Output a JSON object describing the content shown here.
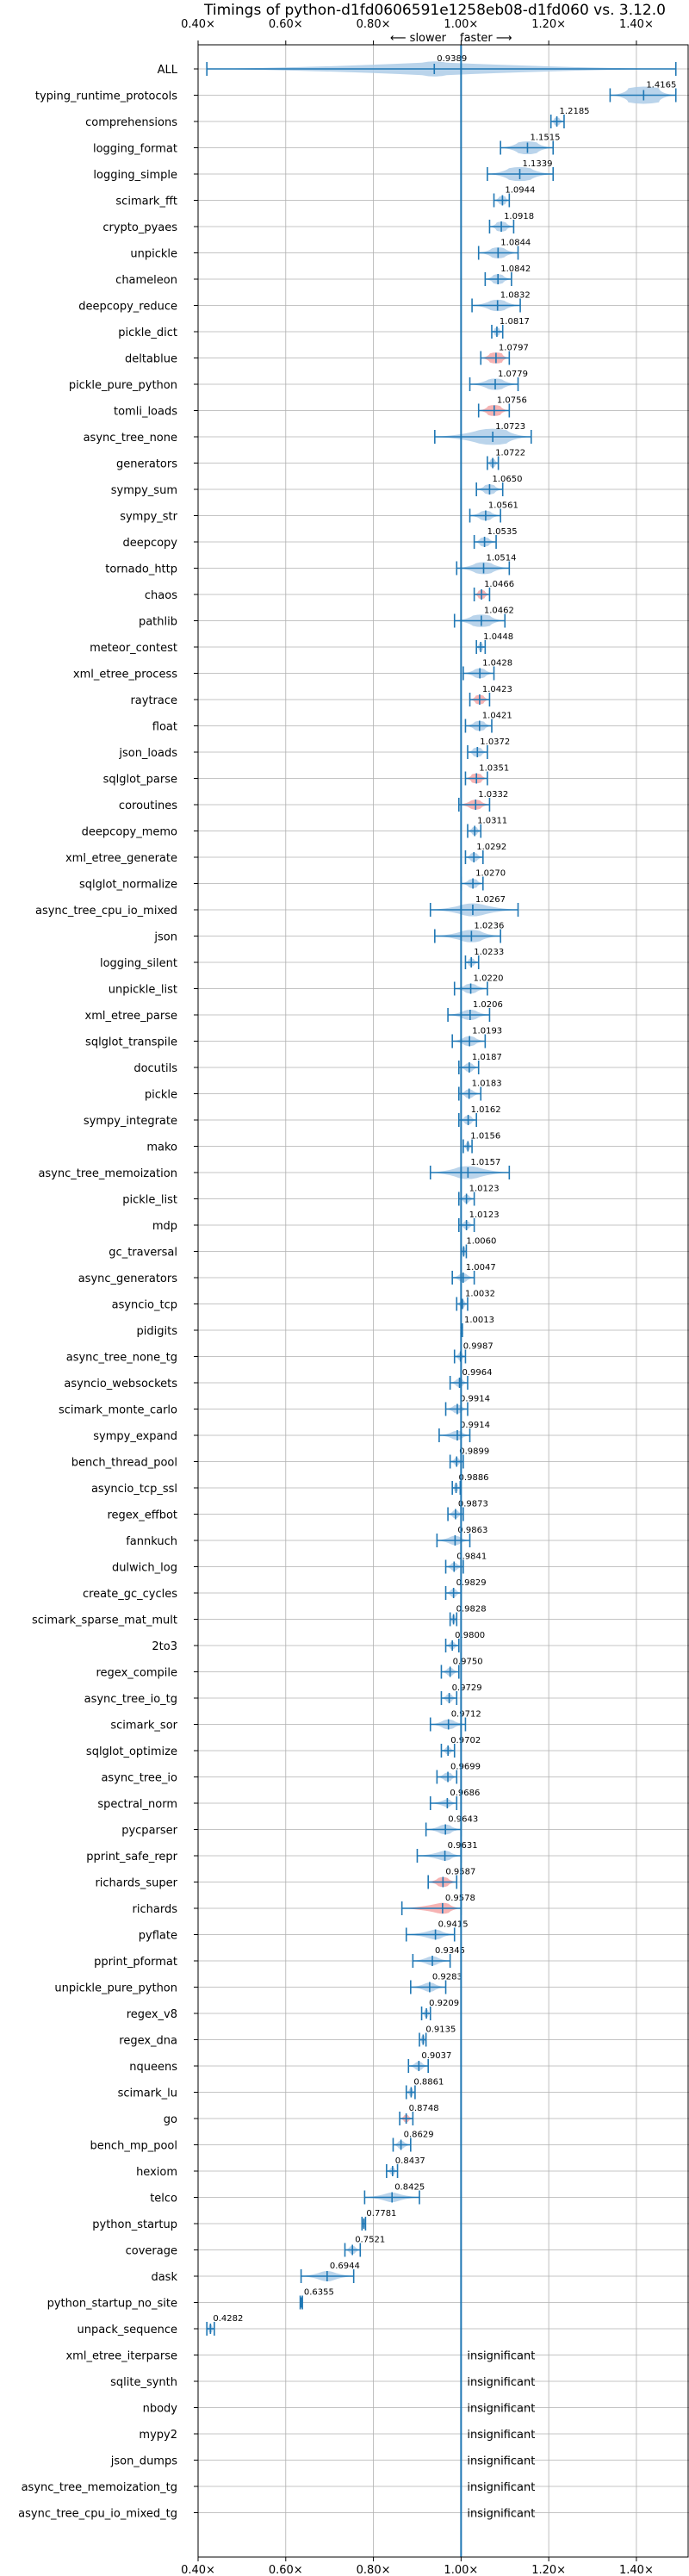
{
  "chart_data": {
    "type": "violin",
    "title": "Timings of python-d1fd0606591e1258eb08-d1fd060 vs. 3.12.0",
    "slower_label": "⟵ slower",
    "faster_label": "faster ⟶",
    "xlim": [
      0.4,
      1.52
    ],
    "xticks": [
      0.4,
      0.6,
      0.8,
      1.0,
      1.2,
      1.4
    ],
    "xtick_labels": [
      "0.40×",
      "0.60×",
      "0.80×",
      "1.00×",
      "1.20×",
      "1.40×"
    ],
    "reference_line": 1.0,
    "grid": true,
    "colors": {
      "violin": "#aecde8",
      "violin_slow": "#f4a6a6",
      "stroke": "#1f77b4",
      "grid": "#b0b0b0",
      "reference": "#1f77b4"
    },
    "insignificant_text": "insignificant",
    "benchmarks": [
      {
        "name": "ALL",
        "mean": 0.9389,
        "lo": 0.42,
        "hi": 1.49,
        "width": 0.08,
        "label": "0.9389"
      },
      {
        "name": "typing_runtime_protocols",
        "mean": 1.4165,
        "lo": 1.34,
        "hi": 1.49,
        "width": 0.1,
        "label": "1.4165"
      },
      {
        "name": "comprehensions",
        "mean": 1.2185,
        "lo": 1.205,
        "hi": 1.235,
        "width": 0.015,
        "label": "1.2185"
      },
      {
        "name": "logging_format",
        "mean": 1.1515,
        "lo": 1.09,
        "hi": 1.21,
        "width": 0.06,
        "label": "1.1515"
      },
      {
        "name": "logging_simple",
        "mean": 1.1339,
        "lo": 1.06,
        "hi": 1.21,
        "width": 0.07,
        "label": "1.1339"
      },
      {
        "name": "scimark_fft",
        "mean": 1.0944,
        "lo": 1.075,
        "hi": 1.11,
        "width": 0.02,
        "label": "1.0944"
      },
      {
        "name": "crypto_pyaes",
        "mean": 1.0918,
        "lo": 1.065,
        "hi": 1.12,
        "width": 0.03,
        "label": "1.0918"
      },
      {
        "name": "unpickle",
        "mean": 1.0844,
        "lo": 1.04,
        "hi": 1.13,
        "width": 0.04,
        "label": "1.0844"
      },
      {
        "name": "chameleon",
        "mean": 1.0842,
        "lo": 1.055,
        "hi": 1.115,
        "width": 0.03,
        "label": "1.0842"
      },
      {
        "name": "deepcopy_reduce",
        "mean": 1.0832,
        "lo": 1.025,
        "hi": 1.135,
        "width": 0.045,
        "label": "1.0832"
      },
      {
        "name": "pickle_dict",
        "mean": 1.0817,
        "lo": 1.07,
        "hi": 1.095,
        "width": 0.015,
        "label": "1.0817"
      },
      {
        "name": "deltablue",
        "mean": 1.0797,
        "lo": 1.045,
        "hi": 1.11,
        "width": 0.04,
        "label": "1.0797",
        "slow": true
      },
      {
        "name": "pickle_pure_python",
        "mean": 1.0779,
        "lo": 1.02,
        "hi": 1.13,
        "width": 0.045,
        "label": "1.0779"
      },
      {
        "name": "tomli_loads",
        "mean": 1.0756,
        "lo": 1.04,
        "hi": 1.11,
        "width": 0.04,
        "label": "1.0756",
        "slow": true
      },
      {
        "name": "async_tree_none",
        "mean": 1.0723,
        "lo": 0.94,
        "hi": 1.16,
        "width": 0.09,
        "label": "1.0723"
      },
      {
        "name": "generators",
        "mean": 1.0722,
        "lo": 1.06,
        "hi": 1.085,
        "width": 0.015,
        "label": "1.0722"
      },
      {
        "name": "sympy_sum",
        "mean": 1.065,
        "lo": 1.035,
        "hi": 1.095,
        "width": 0.03,
        "label": "1.0650"
      },
      {
        "name": "sympy_str",
        "mean": 1.0561,
        "lo": 1.02,
        "hi": 1.09,
        "width": 0.03,
        "label": "1.0561"
      },
      {
        "name": "deepcopy",
        "mean": 1.0535,
        "lo": 1.03,
        "hi": 1.08,
        "width": 0.025,
        "label": "1.0535"
      },
      {
        "name": "tornado_http",
        "mean": 1.0514,
        "lo": 0.99,
        "hi": 1.11,
        "width": 0.05,
        "label": "1.0514"
      },
      {
        "name": "chaos",
        "mean": 1.0466,
        "lo": 1.03,
        "hi": 1.065,
        "width": 0.02,
        "label": "1.0466",
        "slow": true
      },
      {
        "name": "pathlib",
        "mean": 1.0462,
        "lo": 0.985,
        "hi": 1.1,
        "width": 0.055,
        "label": "1.0462"
      },
      {
        "name": "meteor_contest",
        "mean": 1.0448,
        "lo": 1.035,
        "hi": 1.055,
        "width": 0.012,
        "label": "1.0448"
      },
      {
        "name": "xml_etree_process",
        "mean": 1.0428,
        "lo": 1.005,
        "hi": 1.075,
        "width": 0.03,
        "label": "1.0428"
      },
      {
        "name": "raytrace",
        "mean": 1.0423,
        "lo": 1.02,
        "hi": 1.065,
        "width": 0.025,
        "label": "1.0423",
        "slow": true
      },
      {
        "name": "float",
        "mean": 1.0421,
        "lo": 1.01,
        "hi": 1.07,
        "width": 0.03,
        "label": "1.0421"
      },
      {
        "name": "json_loads",
        "mean": 1.0372,
        "lo": 1.015,
        "hi": 1.06,
        "width": 0.025,
        "label": "1.0372"
      },
      {
        "name": "sqlglot_parse",
        "mean": 1.0351,
        "lo": 1.01,
        "hi": 1.06,
        "width": 0.03,
        "label": "1.0351",
        "slow": true
      },
      {
        "name": "coroutines",
        "mean": 1.0332,
        "lo": 0.995,
        "hi": 1.065,
        "width": 0.03,
        "label": "1.0332",
        "slow": true
      },
      {
        "name": "deepcopy_memo",
        "mean": 1.0311,
        "lo": 1.015,
        "hi": 1.045,
        "width": 0.015,
        "label": "1.0311"
      },
      {
        "name": "xml_etree_generate",
        "mean": 1.0292,
        "lo": 1.01,
        "hi": 1.05,
        "width": 0.02,
        "label": "1.0292"
      },
      {
        "name": "sqlglot_normalize",
        "mean": 1.027,
        "lo": 1.0,
        "hi": 1.05,
        "width": 0.025,
        "label": "1.0270"
      },
      {
        "name": "async_tree_cpu_io_mixed",
        "mean": 1.0267,
        "lo": 0.93,
        "hi": 1.13,
        "width": 0.06,
        "label": "1.0267"
      },
      {
        "name": "json",
        "mean": 1.0236,
        "lo": 0.94,
        "hi": 1.09,
        "width": 0.055,
        "label": "1.0236"
      },
      {
        "name": "logging_silent",
        "mean": 1.0233,
        "lo": 1.01,
        "hi": 1.04,
        "width": 0.015,
        "label": "1.0233"
      },
      {
        "name": "unpickle_list",
        "mean": 1.022,
        "lo": 0.985,
        "hi": 1.06,
        "width": 0.03,
        "label": "1.0220"
      },
      {
        "name": "xml_etree_parse",
        "mean": 1.0206,
        "lo": 0.97,
        "hi": 1.065,
        "width": 0.035,
        "label": "1.0206"
      },
      {
        "name": "sqlglot_transpile",
        "mean": 1.0193,
        "lo": 0.98,
        "hi": 1.055,
        "width": 0.03,
        "label": "1.0193"
      },
      {
        "name": "docutils",
        "mean": 1.0187,
        "lo": 0.995,
        "hi": 1.04,
        "width": 0.02,
        "label": "1.0187"
      },
      {
        "name": "pickle",
        "mean": 1.0183,
        "lo": 0.995,
        "hi": 1.045,
        "width": 0.02,
        "label": "1.0183"
      },
      {
        "name": "sympy_integrate",
        "mean": 1.0162,
        "lo": 0.995,
        "hi": 1.035,
        "width": 0.02,
        "label": "1.0162"
      },
      {
        "name": "mako",
        "mean": 1.0156,
        "lo": 1.005,
        "hi": 1.025,
        "width": 0.01,
        "label": "1.0156"
      },
      {
        "name": "async_tree_memoization",
        "mean": 1.0157,
        "lo": 0.93,
        "hi": 1.11,
        "width": 0.06,
        "label": "1.0157"
      },
      {
        "name": "pickle_list",
        "mean": 1.0123,
        "lo": 0.995,
        "hi": 1.03,
        "width": 0.015,
        "label": "1.0123"
      },
      {
        "name": "mdp",
        "mean": 1.0123,
        "lo": 0.995,
        "hi": 1.03,
        "width": 0.015,
        "label": "1.0123"
      },
      {
        "name": "gc_traversal",
        "mean": 1.006,
        "lo": 1.0,
        "hi": 1.012,
        "width": 0.006,
        "label": "1.0060"
      },
      {
        "name": "async_generators",
        "mean": 1.0047,
        "lo": 0.98,
        "hi": 1.03,
        "width": 0.02,
        "label": "1.0047"
      },
      {
        "name": "asyncio_tcp",
        "mean": 1.0032,
        "lo": 0.99,
        "hi": 1.015,
        "width": 0.012,
        "label": "1.0032"
      },
      {
        "name": "pidigits",
        "mean": 1.0013,
        "lo": 1.0,
        "hi": 1.003,
        "width": 0.002,
        "label": "1.0013"
      },
      {
        "name": "async_tree_none_tg",
        "mean": 0.9987,
        "lo": 0.985,
        "hi": 1.01,
        "width": 0.012,
        "label": "0.9987"
      },
      {
        "name": "asyncio_websockets",
        "mean": 0.9964,
        "lo": 0.975,
        "hi": 1.015,
        "width": 0.018,
        "label": "0.9964"
      },
      {
        "name": "scimark_monte_carlo",
        "mean": 0.9914,
        "lo": 0.965,
        "hi": 1.015,
        "width": 0.02,
        "label": "0.9914"
      },
      {
        "name": "sympy_expand",
        "mean": 0.9914,
        "lo": 0.95,
        "hi": 1.02,
        "width": 0.025,
        "label": "0.9914"
      },
      {
        "name": "bench_thread_pool",
        "mean": 0.9899,
        "lo": 0.975,
        "hi": 1.005,
        "width": 0.012,
        "label": "0.9899"
      },
      {
        "name": "asyncio_tcp_ssl",
        "mean": 0.9886,
        "lo": 0.98,
        "hi": 0.998,
        "width": 0.008,
        "label": "0.9886"
      },
      {
        "name": "regex_effbot",
        "mean": 0.9873,
        "lo": 0.97,
        "hi": 1.005,
        "width": 0.015,
        "label": "0.9873"
      },
      {
        "name": "fannkuch",
        "mean": 0.9863,
        "lo": 0.945,
        "hi": 1.02,
        "width": 0.025,
        "label": "0.9863"
      },
      {
        "name": "dulwich_log",
        "mean": 0.9841,
        "lo": 0.965,
        "hi": 1.005,
        "width": 0.015,
        "label": "0.9841"
      },
      {
        "name": "create_gc_cycles",
        "mean": 0.9829,
        "lo": 0.965,
        "hi": 1.0,
        "width": 0.015,
        "label": "0.9829"
      },
      {
        "name": "scimark_sparse_mat_mult",
        "mean": 0.9828,
        "lo": 0.975,
        "hi": 0.99,
        "width": 0.008,
        "label": "0.9828"
      },
      {
        "name": "2to3",
        "mean": 0.98,
        "lo": 0.965,
        "hi": 0.995,
        "width": 0.012,
        "label": "0.9800"
      },
      {
        "name": "regex_compile",
        "mean": 0.975,
        "lo": 0.955,
        "hi": 0.995,
        "width": 0.015,
        "label": "0.9750"
      },
      {
        "name": "async_tree_io_tg",
        "mean": 0.9729,
        "lo": 0.955,
        "hi": 0.99,
        "width": 0.015,
        "label": "0.9729"
      },
      {
        "name": "scimark_sor",
        "mean": 0.9712,
        "lo": 0.93,
        "hi": 1.01,
        "width": 0.03,
        "label": "0.9712"
      },
      {
        "name": "sqlglot_optimize",
        "mean": 0.9702,
        "lo": 0.955,
        "hi": 0.985,
        "width": 0.012,
        "label": "0.9702"
      },
      {
        "name": "async_tree_io",
        "mean": 0.9699,
        "lo": 0.945,
        "hi": 0.99,
        "width": 0.02,
        "label": "0.9699"
      },
      {
        "name": "spectral_norm",
        "mean": 0.9686,
        "lo": 0.93,
        "hi": 0.99,
        "width": 0.015,
        "label": "0.9686"
      },
      {
        "name": "pycparser",
        "mean": 0.9643,
        "lo": 0.92,
        "hi": 1.0,
        "width": 0.03,
        "label": "0.9643"
      },
      {
        "name": "pprint_safe_repr",
        "mean": 0.9631,
        "lo": 0.9,
        "hi": 1.0,
        "width": 0.03,
        "label": "0.9631"
      },
      {
        "name": "richards_super",
        "mean": 0.9587,
        "lo": 0.925,
        "hi": 0.99,
        "width": 0.03,
        "label": "0.9587",
        "slow": true
      },
      {
        "name": "richards",
        "mean": 0.9578,
        "lo": 0.865,
        "hi": 1.0,
        "width": 0.04,
        "label": "0.9578",
        "slow": true
      },
      {
        "name": "pyflate",
        "mean": 0.9415,
        "lo": 0.875,
        "hi": 0.985,
        "width": 0.03,
        "label": "0.9415"
      },
      {
        "name": "pprint_pformat",
        "mean": 0.9345,
        "lo": 0.89,
        "hi": 0.975,
        "width": 0.025,
        "label": "0.9345"
      },
      {
        "name": "unpickle_pure_python",
        "mean": 0.9283,
        "lo": 0.885,
        "hi": 0.965,
        "width": 0.025,
        "label": "0.9283"
      },
      {
        "name": "regex_v8",
        "mean": 0.9209,
        "lo": 0.91,
        "hi": 0.93,
        "width": 0.008,
        "label": "0.9209"
      },
      {
        "name": "regex_dna",
        "mean": 0.9135,
        "lo": 0.905,
        "hi": 0.92,
        "width": 0.006,
        "label": "0.9135"
      },
      {
        "name": "nqueens",
        "mean": 0.9037,
        "lo": 0.88,
        "hi": 0.925,
        "width": 0.018,
        "label": "0.9037"
      },
      {
        "name": "scimark_lu",
        "mean": 0.8861,
        "lo": 0.875,
        "hi": 0.895,
        "width": 0.008,
        "label": "0.8861"
      },
      {
        "name": "go",
        "mean": 0.8748,
        "lo": 0.86,
        "hi": 0.89,
        "width": 0.012,
        "label": "0.8748",
        "slow": true
      },
      {
        "name": "bench_mp_pool",
        "mean": 0.8629,
        "lo": 0.845,
        "hi": 0.885,
        "width": 0.015,
        "label": "0.8629"
      },
      {
        "name": "hexiom",
        "mean": 0.8437,
        "lo": 0.83,
        "hi": 0.855,
        "width": 0.01,
        "label": "0.8437"
      },
      {
        "name": "telco",
        "mean": 0.8425,
        "lo": 0.78,
        "hi": 0.905,
        "width": 0.03,
        "label": "0.8425"
      },
      {
        "name": "python_startup",
        "mean": 0.7781,
        "lo": 0.774,
        "hi": 0.782,
        "width": 0.004,
        "label": "0.7781"
      },
      {
        "name": "coverage",
        "mean": 0.7521,
        "lo": 0.735,
        "hi": 0.77,
        "width": 0.015,
        "label": "0.7521"
      },
      {
        "name": "dask",
        "mean": 0.6944,
        "lo": 0.635,
        "hi": 0.755,
        "width": 0.035,
        "label": "0.6944"
      },
      {
        "name": "python_startup_no_site",
        "mean": 0.6355,
        "lo": 0.633,
        "hi": 0.638,
        "width": 0.003,
        "label": "0.6355"
      },
      {
        "name": "unpack_sequence",
        "mean": 0.4282,
        "lo": 0.42,
        "hi": 0.437,
        "width": 0.006,
        "label": "0.4282"
      },
      {
        "name": "xml_etree_iterparse",
        "insignificant": true
      },
      {
        "name": "sqlite_synth",
        "insignificant": true
      },
      {
        "name": "nbody",
        "insignificant": true
      },
      {
        "name": "mypy2",
        "insignificant": true
      },
      {
        "name": "json_dumps",
        "insignificant": true
      },
      {
        "name": "async_tree_memoization_tg",
        "insignificant": true
      },
      {
        "name": "async_tree_cpu_io_mixed_tg",
        "insignificant": true
      }
    ]
  }
}
